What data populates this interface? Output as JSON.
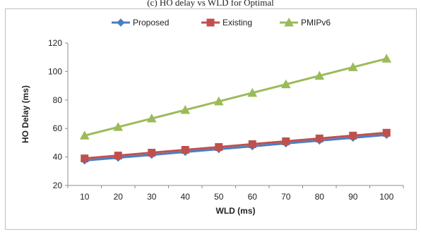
{
  "caption": "(c) HO delay vs WLD for Optimal",
  "chart_data": {
    "type": "line",
    "x": [
      10,
      20,
      30,
      40,
      50,
      60,
      70,
      80,
      90,
      100
    ],
    "categories": [
      "10",
      "20",
      "30",
      "40",
      "50",
      "60",
      "70",
      "80",
      "90",
      "100"
    ],
    "series": [
      {
        "name": "Proposed",
        "color": "#4a7fc1",
        "marker": "diamond",
        "values": [
          37.5,
          39.5,
          41.5,
          43.5,
          45.5,
          47.5,
          49.5,
          51.5,
          53.5,
          55.5
        ]
      },
      {
        "name": "Existing",
        "color": "#c0504d",
        "marker": "square",
        "values": [
          39,
          41,
          43,
          45,
          47,
          49,
          51,
          53,
          55,
          57
        ]
      },
      {
        "name": "PMIPv6",
        "color": "#9bbb59",
        "marker": "triangle",
        "values": [
          55,
          61,
          67,
          73,
          79,
          85,
          91,
          97,
          103,
          109
        ]
      }
    ],
    "xlabel": "WLD (ms)",
    "ylabel": "HO Delay (ms)",
    "ylim": [
      20,
      120
    ],
    "yticks": [
      20,
      40,
      60,
      80,
      100,
      120
    ],
    "grid": false,
    "legend": "top"
  }
}
